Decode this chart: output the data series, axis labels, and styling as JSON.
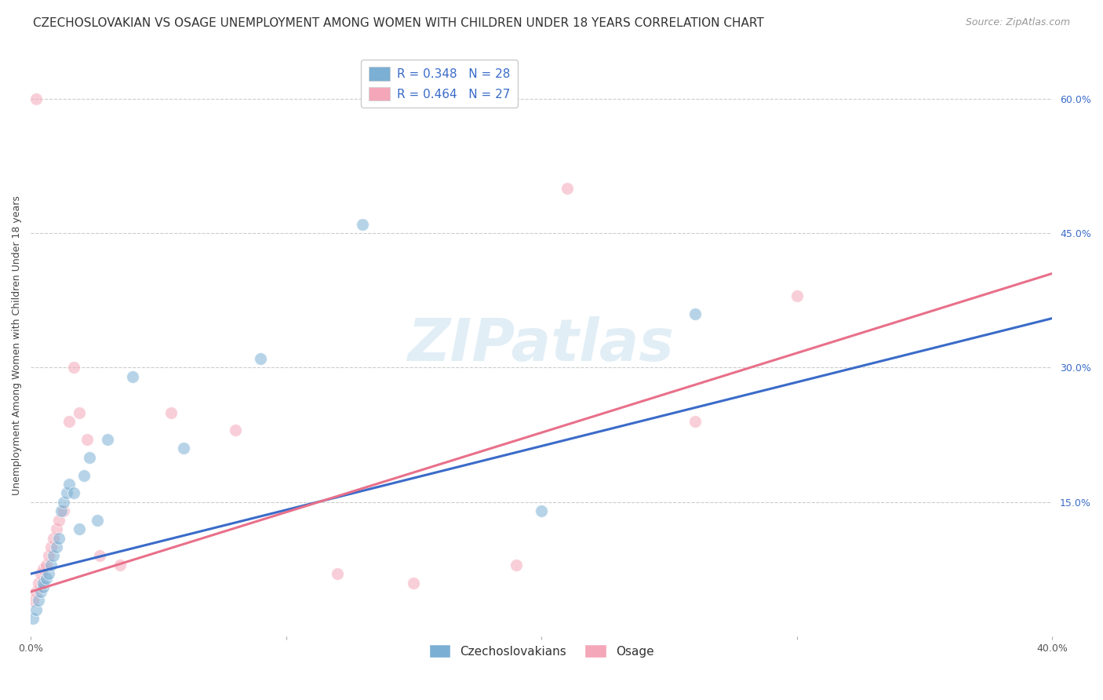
{
  "title": "CZECHOSLOVAKIAN VS OSAGE UNEMPLOYMENT AMONG WOMEN WITH CHILDREN UNDER 18 YEARS CORRELATION CHART",
  "source": "Source: ZipAtlas.com",
  "ylabel": "Unemployment Among Women with Children Under 18 years",
  "xlim": [
    0.0,
    0.4
  ],
  "ylim": [
    0.0,
    0.65
  ],
  "yticks_right": [
    0.0,
    0.15,
    0.3,
    0.45,
    0.6
  ],
  "ytick_labels_right": [
    "",
    "15.0%",
    "30.0%",
    "45.0%",
    "60.0%"
  ],
  "xticks": [
    0.0,
    0.1,
    0.2,
    0.3,
    0.4
  ],
  "xtick_labels": [
    "0.0%",
    "",
    "",
    "",
    "40.0%"
  ],
  "grid_color": "#cccccc",
  "background_color": "#ffffff",
  "watermark_text": "ZIPatlas",
  "legend_blue_label": "R = 0.348   N = 28",
  "legend_pink_label": "R = 0.464   N = 27",
  "legend_blue_color": "#7bafd4",
  "legend_pink_color": "#f4a7b9",
  "blue_scatter_color": "#7bafd4",
  "pink_scatter_color": "#f4a7b9",
  "blue_line_color": "#3a6bc9",
  "pink_line_color": "#e8708a",
  "series_labels": [
    "Czechoslovakians",
    "Osage"
  ],
  "blue_x": [
    0.001,
    0.002,
    0.003,
    0.004,
    0.005,
    0.005,
    0.006,
    0.007,
    0.008,
    0.009,
    0.01,
    0.011,
    0.012,
    0.013,
    0.014,
    0.015,
    0.017,
    0.019,
    0.021,
    0.023,
    0.026,
    0.03,
    0.04,
    0.06,
    0.09,
    0.13,
    0.2,
    0.26
  ],
  "blue_y": [
    0.02,
    0.03,
    0.04,
    0.05,
    0.055,
    0.06,
    0.065,
    0.07,
    0.08,
    0.09,
    0.1,
    0.11,
    0.14,
    0.15,
    0.16,
    0.17,
    0.16,
    0.12,
    0.18,
    0.2,
    0.13,
    0.22,
    0.29,
    0.21,
    0.31,
    0.46,
    0.14,
    0.36
  ],
  "pink_x": [
    0.001,
    0.002,
    0.003,
    0.004,
    0.005,
    0.006,
    0.007,
    0.008,
    0.009,
    0.01,
    0.011,
    0.013,
    0.015,
    0.017,
    0.019,
    0.022,
    0.027,
    0.035,
    0.055,
    0.08,
    0.12,
    0.15,
    0.19,
    0.21,
    0.26,
    0.3,
    0.002
  ],
  "pink_y": [
    0.04,
    0.05,
    0.06,
    0.07,
    0.075,
    0.08,
    0.09,
    0.1,
    0.11,
    0.12,
    0.13,
    0.14,
    0.24,
    0.3,
    0.25,
    0.22,
    0.09,
    0.08,
    0.25,
    0.23,
    0.07,
    0.06,
    0.08,
    0.5,
    0.24,
    0.38,
    0.6
  ],
  "title_fontsize": 11,
  "source_fontsize": 9,
  "axis_label_fontsize": 9,
  "tick_fontsize": 9,
  "legend_fontsize": 11,
  "scatter_size": 130,
  "scatter_alpha": 0.55,
  "line_width": 2.2,
  "blue_line_start_y": 0.07,
  "blue_line_end_y": 0.355,
  "pink_line_start_y": 0.05,
  "pink_line_end_y": 0.405
}
